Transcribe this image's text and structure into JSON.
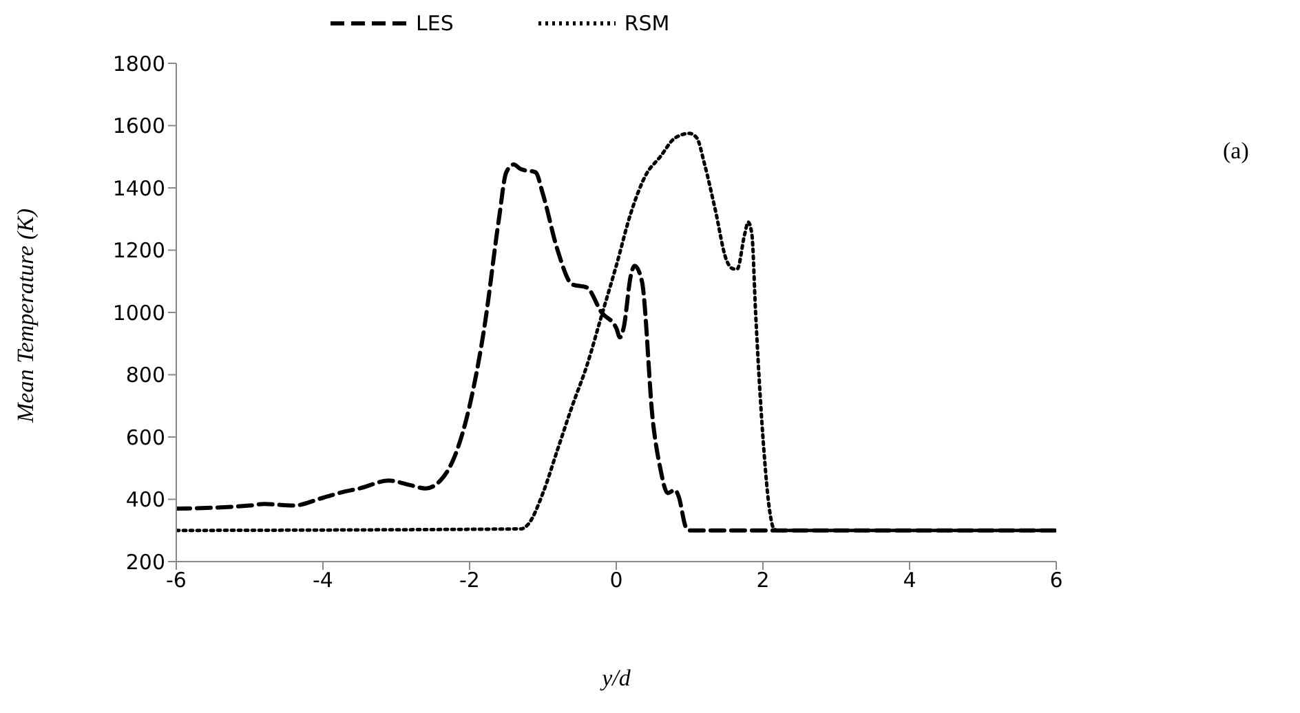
{
  "chart_data": {
    "type": "line",
    "xlabel": "y/d",
    "ylabel": "Mean Temperature (K)",
    "annotations": [
      "(a)"
    ],
    "xlim": [
      -6,
      6
    ],
    "xticks": [
      -6,
      -4,
      -2,
      0,
      2,
      4,
      6
    ],
    "ylim": [
      200,
      1800
    ],
    "yticks": [
      200,
      400,
      600,
      800,
      1000,
      1200,
      1400,
      1600,
      1800
    ],
    "legend": "top",
    "series": [
      {
        "name": "LES",
        "color": "#000000",
        "line_style": "dashed",
        "x": [
          -6,
          -5,
          -4.8,
          -4.4,
          -4,
          -3.7,
          -3.5,
          -3.1,
          -2.8,
          -2.6,
          -2.4,
          -2.2,
          -2,
          -1.8,
          -1.6,
          -1.5,
          -1.4,
          -1.3,
          -1.1,
          -1,
          -0.8,
          -0.6,
          -0.4,
          -0.2,
          0,
          0.05,
          0.1,
          0.2,
          0.25,
          0.35,
          0.5,
          0.6,
          0.7,
          0.8,
          0.85,
          0.95,
          1,
          6
        ],
        "values": [
          370,
          380,
          385,
          380,
          405,
          425,
          435,
          460,
          445,
          435,
          460,
          540,
          700,
          950,
          1300,
          1450,
          1475,
          1460,
          1450,
          1380,
          1200,
          1090,
          1080,
          1000,
          950,
          920,
          950,
          1120,
          1150,
          1100,
          650,
          500,
          420,
          430,
          410,
          310,
          300,
          300
        ]
      },
      {
        "name": "RSM",
        "color": "#000000",
        "line_style": "dotted",
        "x": [
          -6,
          -1.3,
          -1.2,
          -1,
          -0.8,
          -0.6,
          -0.4,
          -0.2,
          0,
          0.2,
          0.4,
          0.6,
          0.8,
          1,
          1.1,
          1.2,
          1.35,
          1.5,
          1.6,
          1.65,
          1.75,
          1.8,
          1.85,
          1.9,
          2,
          2.1,
          2.15,
          2.2,
          6
        ],
        "values": [
          300,
          305,
          320,
          420,
          560,
          700,
          830,
          990,
          1150,
          1320,
          1440,
          1500,
          1560,
          1575,
          1560,
          1480,
          1330,
          1170,
          1140,
          1140,
          1250,
          1290,
          1250,
          1000,
          600,
          350,
          305,
          300,
          300
        ]
      }
    ]
  }
}
